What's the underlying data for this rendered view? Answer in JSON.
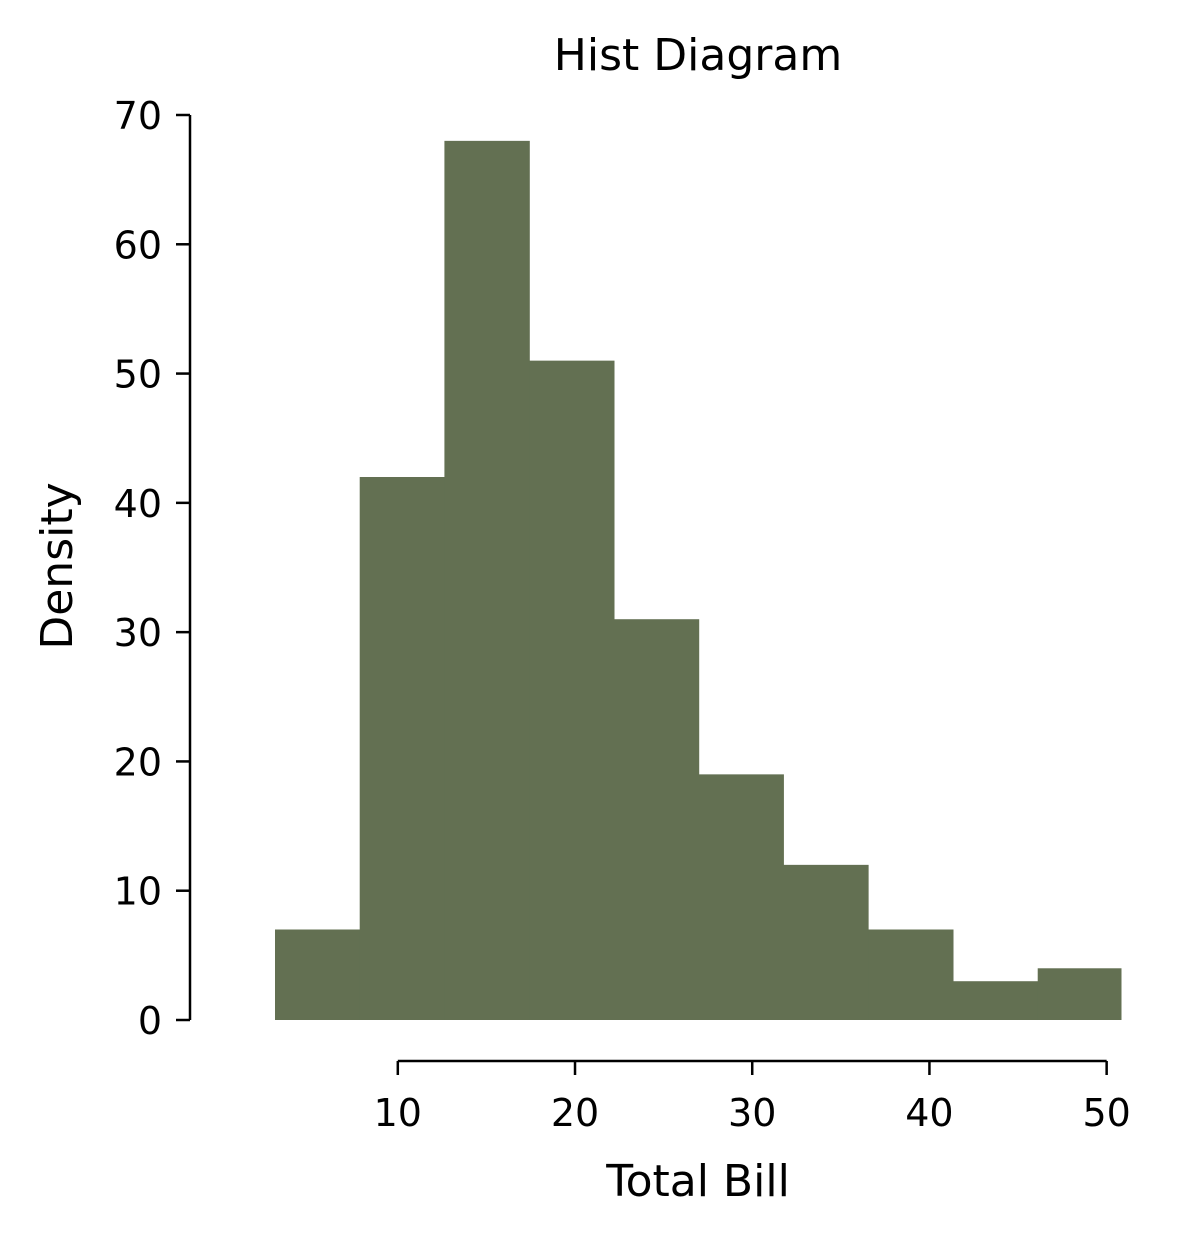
{
  "chart_data": {
    "type": "bar",
    "title": "Hist Diagram",
    "xlabel": "Total Bill",
    "ylabel": "Density",
    "bar_color": "#637052",
    "bins": [
      {
        "x0": 3.07,
        "x1": 7.85,
        "count": 7
      },
      {
        "x0": 7.85,
        "x1": 12.63,
        "count": 42
      },
      {
        "x0": 12.63,
        "x1": 17.42,
        "count": 68
      },
      {
        "x0": 17.42,
        "x1": 22.2,
        "count": 51
      },
      {
        "x0": 22.2,
        "x1": 26.98,
        "count": 31
      },
      {
        "x0": 26.98,
        "x1": 31.76,
        "count": 19
      },
      {
        "x0": 31.76,
        "x1": 36.54,
        "count": 12
      },
      {
        "x0": 36.54,
        "x1": 41.33,
        "count": 7
      },
      {
        "x0": 41.33,
        "x1": 46.11,
        "count": 3
      },
      {
        "x0": 46.11,
        "x1": 50.81,
        "count": 4
      }
    ],
    "xlim": [
      3.07,
      50.81
    ],
    "ylim": [
      0,
      70
    ],
    "x_ticks": [
      10,
      20,
      30,
      40,
      50
    ],
    "y_ticks": [
      0,
      10,
      20,
      30,
      40,
      50,
      60,
      70
    ],
    "grid": false,
    "legend": "none"
  }
}
